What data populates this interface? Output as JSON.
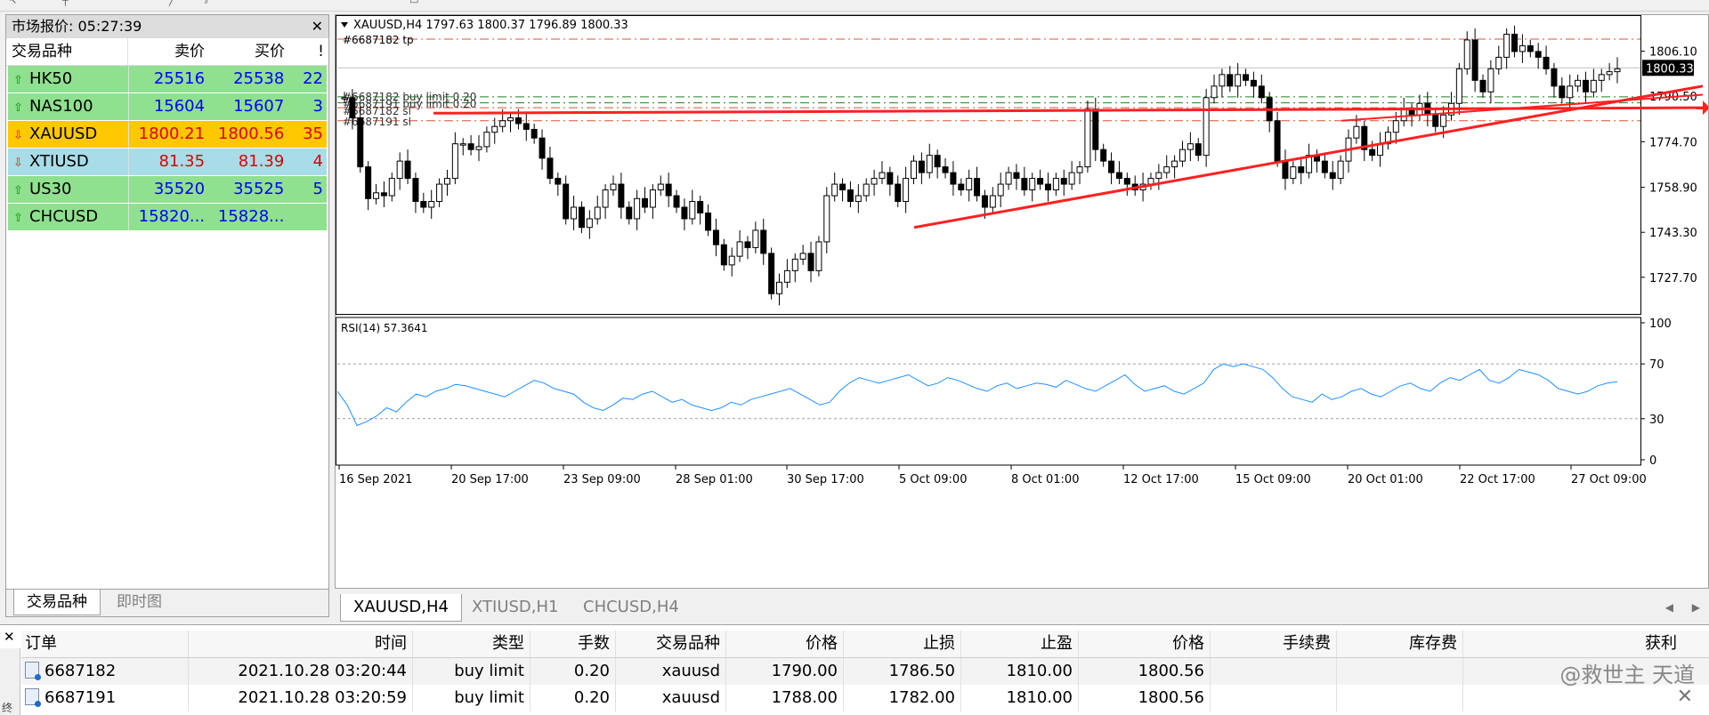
{
  "market_watch": {
    "title": "市场报价: 05:27:39",
    "headers": {
      "symbol": "交易品种",
      "bid": "卖价",
      "ask": "买价",
      "spread": "!"
    },
    "rows": [
      {
        "symbol": "HK50",
        "bid": "25516",
        "ask": "25538",
        "spread": "22",
        "dir": "up",
        "color": "green"
      },
      {
        "symbol": "NAS100",
        "bid": "15604",
        "ask": "15607",
        "spread": "3",
        "dir": "up",
        "color": "green"
      },
      {
        "symbol": "XAUUSD",
        "bid": "1800.21",
        "ask": "1800.56",
        "spread": "35",
        "dir": "down",
        "color": "yellow"
      },
      {
        "symbol": "XTIUSD",
        "bid": "81.35",
        "ask": "81.39",
        "spread": "4",
        "dir": "down",
        "color": "blue"
      },
      {
        "symbol": "US30",
        "bid": "35520",
        "ask": "35525",
        "spread": "5",
        "dir": "up",
        "color": "green"
      },
      {
        "symbol": "CHCUSD",
        "bid": "15820...",
        "ask": "15828...",
        "spread": "",
        "dir": "up",
        "color": "green"
      }
    ],
    "tabs": [
      "交易品种",
      "即时图"
    ]
  },
  "chart": {
    "header": "XAUUSD,H4  1797.63 1800.37 1796.89 1800.33",
    "order_labels": {
      "tp": "#6687182 tp",
      "buy1": "#6687182 buy limit 0.20",
      "buy2": "#6687191 buy limit 0.20",
      "sl1": "#6687182 sl",
      "sl2": "#6687191 sl"
    },
    "price_axis": [
      "1806.10",
      "1790.50",
      "1774.70",
      "1758.90",
      "1743.30",
      "1727.70"
    ],
    "current_price": "1800.33",
    "rsi_label": "RSI(14) 57.3641",
    "rsi_axis": [
      "100",
      "70",
      "30",
      "0"
    ],
    "time_axis": [
      "16 Sep 2021",
      "20 Sep 17:00",
      "23 Sep 09:00",
      "28 Sep 01:00",
      "30 Sep 17:00",
      "5 Oct 09:00",
      "8 Oct 01:00",
      "12 Oct 17:00",
      "15 Oct 09:00",
      "20 Oct 01:00",
      "22 Oct 17:00",
      "27 Oct 09:00"
    ],
    "colors": {
      "up": "#ffffff",
      "down": "#000000",
      "tp": "#e05030",
      "buy": "#208020",
      "sl": "#e05030",
      "rsi": "#1e90ff",
      "trend": "#ff2020"
    }
  },
  "chart_tabs": [
    "XAUUSD,H4",
    "XTIUSD,H1",
    "CHCUSD,H4"
  ],
  "orders": {
    "headers": [
      "订单",
      "时间",
      "类型",
      "手数",
      "交易品种",
      "价格",
      "止损",
      "止盈",
      "价格",
      "手续费",
      "库存费",
      "获利"
    ],
    "rows": [
      [
        "6687182",
        "2021.10.28 03:20:44",
        "buy limit",
        "0.20",
        "xauusd",
        "1790.00",
        "1786.50",
        "1810.00",
        "1800.56",
        "",
        "",
        ""
      ],
      [
        "6687191",
        "2021.10.28 03:20:59",
        "buy limit",
        "0.20",
        "xauusd",
        "1788.00",
        "1782.00",
        "1810.00",
        "1800.56",
        "",
        "",
        ""
      ]
    ],
    "side_label": "终",
    "watermark": "@救世主 天道"
  }
}
